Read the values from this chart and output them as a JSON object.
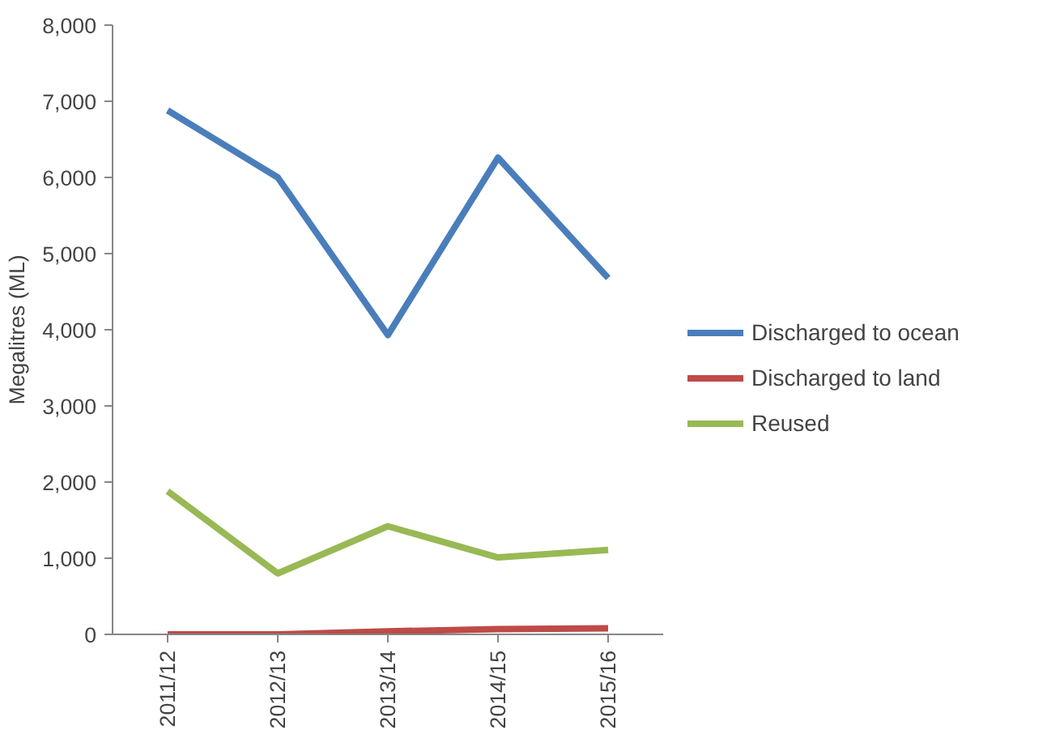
{
  "chart_data": {
    "type": "line",
    "ylabel": "Megalitres (ML)",
    "categories": [
      "2011/12",
      "2012/13",
      "2013/14",
      "2014/15",
      "2015/16"
    ],
    "series": [
      {
        "name": "Discharged to ocean",
        "color": "#4a7ebb",
        "values": [
          6880,
          6000,
          3930,
          6260,
          4680
        ]
      },
      {
        "name": "Discharged to land",
        "color": "#be4b48",
        "values": [
          0,
          0,
          40,
          70,
          80
        ]
      },
      {
        "name": "Reused",
        "color": "#98b954",
        "values": [
          1880,
          800,
          1420,
          1010,
          1110
        ]
      }
    ],
    "ylim": [
      0,
      8000
    ],
    "yticks": [
      {
        "value": 0,
        "label": "0"
      },
      {
        "value": 1000,
        "label": "1,000"
      },
      {
        "value": 2000,
        "label": "2,000"
      },
      {
        "value": 3000,
        "label": "3,000"
      },
      {
        "value": 4000,
        "label": "4,000"
      },
      {
        "value": 5000,
        "label": "5,000"
      },
      {
        "value": 6000,
        "label": "6,000"
      },
      {
        "value": 7000,
        "label": "7,000"
      },
      {
        "value": 8000,
        "label": "8,000"
      }
    ],
    "grid": false,
    "legend": "right",
    "marker": "none",
    "line_style": "solid"
  }
}
